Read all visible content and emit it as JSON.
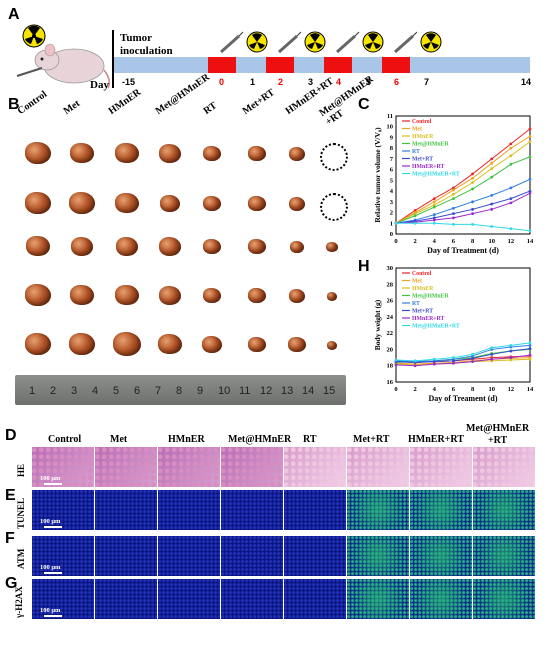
{
  "panels": {
    "A": "A",
    "B": "B",
    "C": "C",
    "D": "D",
    "E": "E",
    "F": "F",
    "G": "G",
    "H": "H"
  },
  "timeline": {
    "inoculation": "Tumor\ninoculation",
    "day_label": "Day",
    "ticks": [
      "-15",
      "0",
      "1",
      "2",
      "3",
      "4",
      "5",
      "6",
      "7",
      "14"
    ],
    "red_ticks": [
      "0",
      "2",
      "4",
      "6"
    ]
  },
  "groups": [
    "Control",
    "Met",
    "HMnER",
    "Met@HMnER",
    "RT",
    "Met+RT",
    "HMnER+RT",
    "Met@HMnER\n+RT"
  ],
  "ruler_numbers": [
    "1",
    "2",
    "3",
    "4",
    "5",
    "6",
    "7",
    "8",
    "9",
    "10",
    "11",
    "12",
    "13",
    "14",
    "15"
  ],
  "chart_data": [
    {
      "type": "line",
      "xlabel": "Day of Treatment (d)",
      "ylabel": "Relative tumor volume (V/V₀)",
      "x": [
        0,
        2,
        4,
        6,
        8,
        10,
        12,
        14
      ],
      "xlim": [
        0,
        14
      ],
      "ylim": [
        0,
        11
      ],
      "yticks": [
        0,
        1,
        2,
        3,
        4,
        5,
        6,
        7,
        8,
        9,
        10,
        11
      ],
      "legend_position": "top-left",
      "series": [
        {
          "name": "Control",
          "color": "#e8262b",
          "values": [
            1,
            2.2,
            3.3,
            4.3,
            5.6,
            7.0,
            8.4,
            9.8
          ]
        },
        {
          "name": "Met",
          "color": "#f0a020",
          "values": [
            1,
            2.0,
            3.0,
            4.1,
            5.2,
            6.6,
            8.0,
            9.1
          ]
        },
        {
          "name": "HMnER",
          "color": "#d8c020",
          "values": [
            1,
            1.9,
            2.7,
            3.7,
            4.8,
            6.1,
            7.3,
            8.6
          ]
        },
        {
          "name": "Met@HMnER",
          "color": "#3fc23f",
          "values": [
            1,
            1.7,
            2.5,
            3.3,
            4.2,
            5.3,
            6.5,
            7.2
          ]
        },
        {
          "name": "RT",
          "color": "#2f7fe0",
          "values": [
            1,
            1.3,
            1.8,
            2.4,
            3.0,
            3.6,
            4.3,
            5.1
          ]
        },
        {
          "name": "Met+RT",
          "color": "#3a4bd0",
          "values": [
            1,
            1.2,
            1.5,
            1.9,
            2.3,
            2.8,
            3.3,
            4.0
          ]
        },
        {
          "name": "HMnER+RT",
          "color": "#9a2ad0",
          "values": [
            1,
            1.1,
            1.3,
            1.5,
            1.9,
            2.3,
            2.9,
            3.8
          ]
        },
        {
          "name": "Met@HMnER+RT",
          "color": "#30d8e8",
          "values": [
            1,
            1.0,
            1.0,
            0.9,
            0.9,
            0.7,
            0.5,
            0.3
          ]
        }
      ]
    },
    {
      "type": "line",
      "xlabel": "Day of Treament (d)",
      "ylabel": "Body weight (g)",
      "x": [
        0,
        2,
        4,
        6,
        8,
        10,
        12,
        14
      ],
      "xlim": [
        0,
        14
      ],
      "ylim": [
        16,
        30
      ],
      "yticks": [
        16,
        18,
        20,
        22,
        24,
        26,
        28,
        30
      ],
      "legend_position": "top-left",
      "series": [
        {
          "name": "Control",
          "color": "#e8262b",
          "values": [
            18.5,
            18.4,
            18.5,
            18.6,
            18.8,
            19.0,
            19.1,
            19.2
          ]
        },
        {
          "name": "Met",
          "color": "#f0a020",
          "values": [
            18.3,
            18.2,
            18.3,
            18.4,
            18.6,
            18.8,
            18.9,
            19.0
          ]
        },
        {
          "name": "HMnER",
          "color": "#d8c020",
          "values": [
            18.2,
            18.1,
            18.2,
            18.3,
            18.5,
            18.6,
            18.7,
            18.8
          ]
        },
        {
          "name": "Met@HMnER",
          "color": "#3fc23f",
          "values": [
            18.4,
            18.5,
            18.6,
            18.8,
            19.0,
            19.5,
            19.8,
            20.0
          ]
        },
        {
          "name": "RT",
          "color": "#2f7fe0",
          "values": [
            18.6,
            18.5,
            18.6,
            18.8,
            19.2,
            20.0,
            20.3,
            20.5
          ]
        },
        {
          "name": "Met+RT",
          "color": "#3a4bd0",
          "values": [
            18.5,
            18.4,
            18.5,
            18.6,
            18.9,
            19.4,
            19.8,
            20.1
          ]
        },
        {
          "name": "HMnER+RT",
          "color": "#9a2ad0",
          "values": [
            18.1,
            18.0,
            18.2,
            18.3,
            18.5,
            18.8,
            19.0,
            19.3
          ]
        },
        {
          "name": "Met@HMnER+RT",
          "color": "#30d8e8",
          "values": [
            18.7,
            18.6,
            18.8,
            19.0,
            19.4,
            20.2,
            20.5,
            20.8
          ]
        }
      ]
    }
  ],
  "micro": {
    "columns": [
      "Control",
      "Met",
      "HMnER",
      "Met@HMnER",
      "RT",
      "Met+RT",
      "HMnER+RT",
      "Met@HMnER\n+RT"
    ],
    "rows": [
      "HE",
      "TUNEL",
      "ATM",
      "γ-H2AX"
    ],
    "scale_bar": "100 μm"
  }
}
